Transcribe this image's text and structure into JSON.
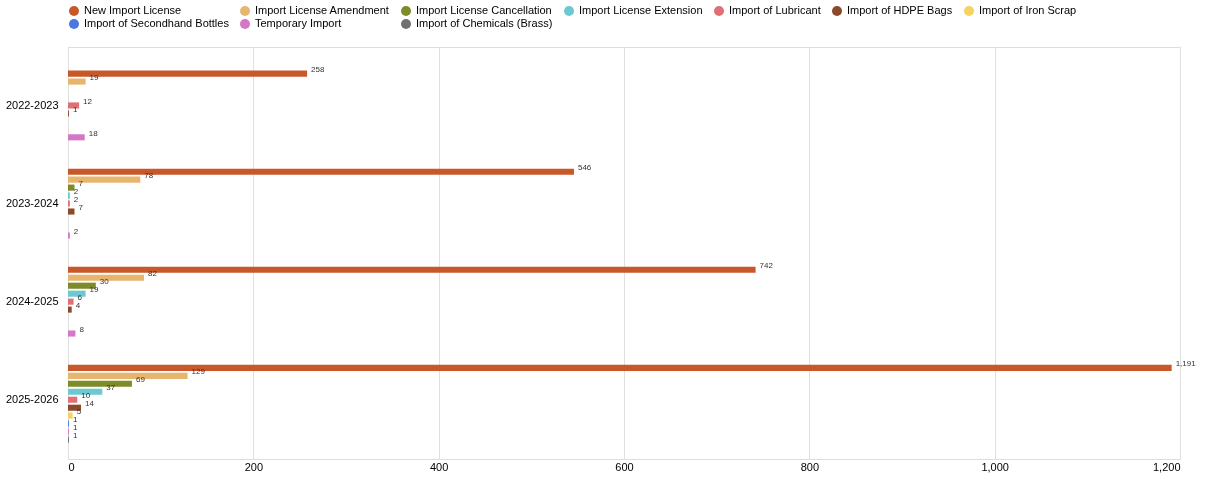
{
  "chart_data": {
    "type": "bar",
    "orientation": "horizontal",
    "categories": [
      "2022-2023",
      "2023-2024",
      "2024-2025",
      "2025-2026"
    ],
    "series": [
      {
        "name": "New Import License",
        "color": "#c8582a",
        "values": [
          258,
          546,
          742,
          1191
        ],
        "value_labels": [
          "258",
          "546",
          "742",
          "1,191"
        ]
      },
      {
        "name": "Import License Amendment",
        "color": "#e6b56e",
        "values": [
          19,
          78,
          82,
          129
        ],
        "value_labels": [
          "19",
          "78",
          "82",
          "129"
        ]
      },
      {
        "name": "Import License Cancellation",
        "color": "#7f8a2a",
        "values": [
          null,
          7,
          30,
          69
        ],
        "value_labels": [
          null,
          "7",
          "30",
          "69"
        ]
      },
      {
        "name": "Import License Extension",
        "color": "#6cc9d1",
        "values": [
          null,
          2,
          19,
          37
        ],
        "value_labels": [
          null,
          "2",
          "19",
          "37"
        ]
      },
      {
        "name": "Import of Lubricant",
        "color": "#e07078",
        "values": [
          12,
          2,
          6,
          10
        ],
        "value_labels": [
          "12",
          "2",
          "6",
          "10"
        ]
      },
      {
        "name": "Import of HDPE Bags",
        "color": "#8b4a2a",
        "values": [
          1,
          7,
          4,
          14
        ],
        "value_labels": [
          "1",
          "7",
          "4",
          "14"
        ]
      },
      {
        "name": "Import of Iron Scrap",
        "color": "#f5d361",
        "values": [
          null,
          null,
          null,
          5
        ],
        "value_labels": [
          null,
          null,
          null,
          "5"
        ]
      },
      {
        "name": "Import of Secondhand Bottles",
        "color": "#4a78e0",
        "values": [
          null,
          null,
          null,
          1
        ],
        "value_labels": [
          null,
          null,
          null,
          "1"
        ]
      },
      {
        "name": "Temporary Import",
        "color": "#d477c4",
        "values": [
          18,
          2,
          8,
          1
        ],
        "value_labels": [
          "18",
          "2",
          "8",
          "1"
        ]
      },
      {
        "name": "Import of Chemicals (Brass)",
        "color": "#707070",
        "values": [
          null,
          null,
          null,
          1
        ],
        "value_labels": [
          null,
          null,
          null,
          "1"
        ]
      }
    ],
    "xlim": [
      0,
      1200
    ],
    "xticks": [
      0,
      200,
      400,
      600,
      800,
      {
        "value": 1000,
        "label": "1,000"
      },
      {
        "value": 1200,
        "label": "1,200"
      }
    ],
    "grid": "x",
    "legend": "top"
  }
}
